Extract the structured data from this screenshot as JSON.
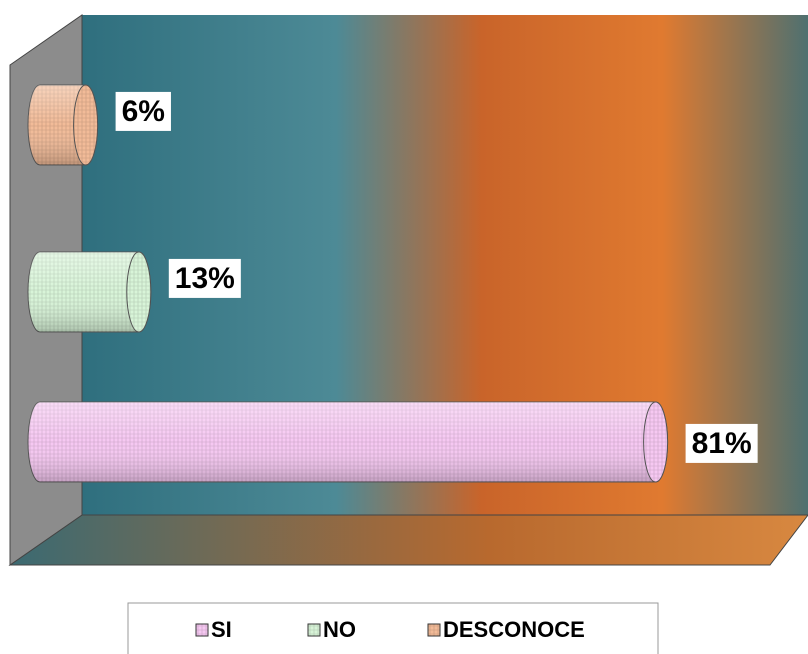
{
  "chart_data": {
    "type": "bar",
    "orientation": "horizontal",
    "categories": [
      "SI",
      "NO",
      "DESCONOCE"
    ],
    "values": [
      81,
      13,
      6
    ],
    "value_labels": [
      "81%",
      "13%",
      "6%"
    ],
    "colors": [
      "#f6c8f2",
      "#d8f4d8",
      "#f2bb98"
    ],
    "xlim": [
      0,
      100
    ]
  }
}
